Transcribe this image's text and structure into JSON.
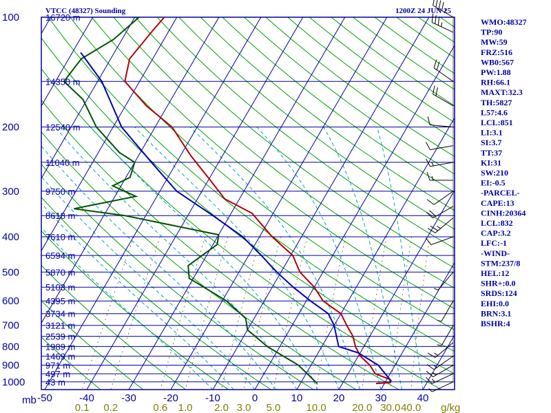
{
  "chart_data": {
    "type": "line",
    "title": "VTCC (48327) Sounding",
    "datetime": "1200Z 24 JUN 25",
    "pressure_levels": [
      100,
      200,
      300,
      400,
      500,
      600,
      700,
      800,
      900,
      1000
    ],
    "pressure_label_text": [
      "100",
      "200",
      "300",
      "400",
      "500",
      "600",
      "700",
      "800",
      "900",
      "1000"
    ],
    "pressure_unit": "mb",
    "height_labels": [
      {
        "p": 100,
        "text": "16720 m"
      },
      {
        "p": 150,
        "text": "14350 m"
      },
      {
        "p": 200,
        "text": "12540 m"
      },
      {
        "p": 250,
        "text": "11040 m"
      },
      {
        "p": 300,
        "text": "9750 m"
      },
      {
        "p": 350,
        "text": "8618 m"
      },
      {
        "p": 400,
        "text": "7610 m"
      },
      {
        "p": 450,
        "text": "6594 m"
      },
      {
        "p": 500,
        "text": "5870 m"
      },
      {
        "p": 550,
        "text": "5103 m"
      },
      {
        "p": 600,
        "text": "4395 m"
      },
      {
        "p": 650,
        "text": "3734 m"
      },
      {
        "p": 700,
        "text": "3121 m"
      },
      {
        "p": 750,
        "text": "2539 m"
      },
      {
        "p": 800,
        "text": "1989 m"
      },
      {
        "p": 850,
        "text": "1469 m"
      },
      {
        "p": 900,
        "text": "971 m"
      },
      {
        "p": 950,
        "text": "497 m"
      },
      {
        "p": 1000,
        "text": "43 m"
      }
    ],
    "temperature_ticks": [
      -50,
      -40,
      -30,
      -20,
      -10,
      0,
      10,
      20,
      30,
      40
    ],
    "temperature_tick_text": [
      "-50",
      "-40",
      "-30",
      "-20",
      "-10",
      "0",
      "10",
      "20",
      "30",
      "40"
    ],
    "mixing_ratio_ticks": [
      0.1,
      0.2,
      0.6,
      1.0,
      2.0,
      3.0,
      5.0,
      10.0,
      20.0,
      30.0,
      40.0
    ],
    "mixing_ratio_text": [
      "0.1",
      "0.2",
      "0.6",
      "1.0",
      "2.0",
      "3.0",
      "5.0",
      "10.0",
      "20.0",
      "30.0",
      "40.0"
    ],
    "mixing_ratio_unit": "g/kg",
    "series": [
      {
        "key": "temperature",
        "color": "#b00000",
        "points": [
          [
            -73,
            100
          ],
          [
            -74,
            110
          ],
          [
            -75.5,
            130
          ],
          [
            -73.5,
            150
          ],
          [
            -65,
            175
          ],
          [
            -56,
            200
          ],
          [
            -47.5,
            240
          ],
          [
            -39.5,
            280
          ],
          [
            -33.5,
            315
          ],
          [
            -25,
            345
          ],
          [
            -17,
            400
          ],
          [
            -9.5,
            450
          ],
          [
            -5.5,
            500
          ],
          [
            0,
            550
          ],
          [
            4,
            600
          ],
          [
            10,
            650
          ],
          [
            13,
            700
          ],
          [
            16,
            750
          ],
          [
            18,
            800
          ],
          [
            20.5,
            850
          ],
          [
            24,
            900
          ],
          [
            26.5,
            950
          ],
          [
            30.8,
            985
          ],
          [
            31.2,
            1005
          ],
          [
            28,
            1010
          ]
        ]
      },
      {
        "key": "dewpoint",
        "color": "#005000",
        "points": [
          [
            -79,
            100
          ],
          [
            -82,
            115
          ],
          [
            -87,
            130
          ],
          [
            -88,
            150
          ],
          [
            -81,
            168
          ],
          [
            -74,
            200
          ],
          [
            -65,
            235
          ],
          [
            -60,
            250
          ],
          [
            -59,
            275
          ],
          [
            -62,
            290
          ],
          [
            -55,
            310
          ],
          [
            -68,
            335
          ],
          [
            -55,
            350
          ],
          [
            -30,
            395
          ],
          [
            -29,
            420
          ],
          [
            -33,
            480
          ],
          [
            -31,
            520
          ],
          [
            -19,
            600
          ],
          [
            -12,
            670
          ],
          [
            -10,
            720
          ],
          [
            -3,
            800
          ],
          [
            7,
            900
          ],
          [
            14,
            1010
          ]
        ]
      },
      {
        "key": "parcel",
        "color": "#0000b0",
        "points": [
          [
            -88,
            125
          ],
          [
            -79,
            150
          ],
          [
            -68,
            200
          ],
          [
            -56,
            250
          ],
          [
            -46,
            300
          ],
          [
            -34,
            350
          ],
          [
            -24,
            400
          ],
          [
            -17,
            450
          ],
          [
            -11,
            500
          ],
          [
            -5,
            550
          ],
          [
            1,
            600
          ],
          [
            7,
            650
          ],
          [
            10,
            700
          ],
          [
            14,
            800
          ],
          [
            19.5,
            832
          ],
          [
            26,
            900
          ],
          [
            31,
            990
          ],
          [
            31.3,
            1005
          ]
        ]
      }
    ],
    "indices_text": [
      "WMO:48327",
      "TP:90",
      "MW:59",
      "FRZ:516",
      "WB0:567",
      "PW:1.88",
      "RH:66.1",
      "MAXT:32.3",
      "TH:5827",
      "L57:4.6",
      "LCL:851",
      "LI:3.1",
      "SI:3.7",
      "TT:37",
      "KI:31",
      "SW:210",
      "EI:-0.5",
      "-PARCEL-",
      "CAPE:13",
      "CINH:20364",
      "LCL:832",
      "CAP:3.2",
      "LFC:-1",
      "-WIND-",
      "STM:237/8",
      "HEL:12",
      "SHR+:0.0",
      "SRDS:124",
      "EHI:0.0",
      "BRN:3.1",
      "BSHR:4"
    ],
    "wind_profile": [
      {
        "p": 100,
        "dir": 300,
        "spd": 45
      },
      {
        "p": 110,
        "dir": 295,
        "spd": 35
      },
      {
        "p": 150,
        "dir": 305,
        "spd": 20
      },
      {
        "p": 175,
        "dir": 300,
        "spd": 20
      },
      {
        "p": 200,
        "dir": 275,
        "spd": 10
      },
      {
        "p": 225,
        "dir": 260,
        "spd": 10
      },
      {
        "p": 250,
        "dir": 260,
        "spd": 15
      },
      {
        "p": 280,
        "dir": 270,
        "spd": 15
      },
      {
        "p": 300,
        "dir": 235,
        "spd": 10
      },
      {
        "p": 330,
        "dir": 240,
        "spd": 20
      },
      {
        "p": 355,
        "dir": 230,
        "spd": 25
      },
      {
        "p": 400,
        "dir": 250,
        "spd": 10
      },
      {
        "p": 500,
        "dir": 220,
        "spd": 5
      },
      {
        "p": 600,
        "dir": 210,
        "spd": 5
      },
      {
        "p": 700,
        "dir": 210,
        "spd": 5
      },
      {
        "p": 780,
        "dir": 230,
        "spd": 15
      },
      {
        "p": 850,
        "dir": 235,
        "spd": 15
      },
      {
        "p": 900,
        "dir": 240,
        "spd": 15
      },
      {
        "p": 950,
        "dir": 245,
        "spd": 15
      },
      {
        "p": 1000,
        "dir": 245,
        "spd": 5
      }
    ],
    "colors": {
      "isobar": "#0000a0",
      "isotherm": "#0000a0",
      "dry_adiabat": "#00a000",
      "moist_adiabat": "#00a0c0",
      "mixing_ratio": "#606000",
      "label": "#0000a0",
      "mixing_label": "#808000"
    }
  }
}
